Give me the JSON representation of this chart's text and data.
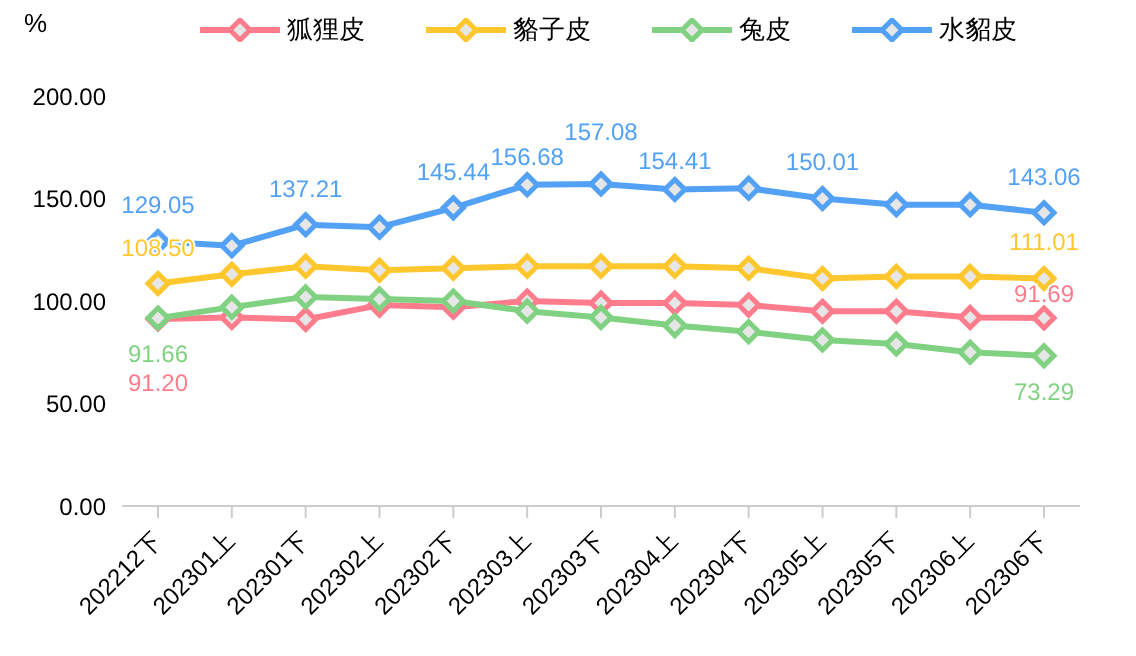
{
  "chart_data": {
    "type": "line",
    "ylabel": "%",
    "categories": [
      "202212下",
      "202301上",
      "202301下",
      "202302上",
      "202302下",
      "202303上",
      "202303下",
      "202304上",
      "202304下",
      "202305上",
      "202305下",
      "202306上",
      "202306下"
    ],
    "series": [
      {
        "name": "狐狸皮",
        "color": "#ff7c8c",
        "values": [
          91.2,
          92,
          91,
          98,
          97,
          100,
          99,
          99,
          98,
          95,
          95,
          92,
          91.69
        ],
        "value_labels": [
          "91.20",
          null,
          null,
          null,
          null,
          null,
          null,
          null,
          null,
          null,
          null,
          null,
          "91.69"
        ]
      },
      {
        "name": "貉子皮",
        "color": "#ffc72e",
        "values": [
          108.5,
          113,
          117,
          115,
          116,
          117,
          117,
          117,
          116,
          111,
          112,
          112,
          111.01
        ],
        "value_labels": [
          "108.50",
          null,
          null,
          null,
          null,
          null,
          null,
          null,
          null,
          null,
          null,
          null,
          "111.01"
        ]
      },
      {
        "name": "兔皮",
        "color": "#80d282",
        "values": [
          91.66,
          97,
          102,
          101,
          100,
          95,
          92,
          88,
          85,
          81,
          79,
          75,
          73.29
        ],
        "value_labels": [
          "91.66",
          null,
          null,
          null,
          null,
          null,
          null,
          null,
          null,
          null,
          null,
          null,
          "73.29"
        ]
      },
      {
        "name": "水貂皮",
        "color": "#52a1f5",
        "values": [
          129.05,
          127,
          137.21,
          136,
          145.44,
          156.68,
          157.08,
          154.41,
          155,
          150.01,
          147,
          147,
          143.06
        ],
        "value_labels": [
          "129.05",
          null,
          "137.21",
          null,
          "145.44",
          "156.68",
          "157.08",
          "154.41",
          null,
          "150.01",
          null,
          null,
          "143.06"
        ]
      }
    ],
    "ylim": [
      0,
      200
    ],
    "yticks": [
      {
        "value": 0,
        "label": "0.00"
      },
      {
        "value": 50,
        "label": "50.00"
      },
      {
        "value": 100,
        "label": "100.00"
      },
      {
        "value": 150,
        "label": "150.00"
      },
      {
        "value": 200,
        "label": "200.00"
      }
    ],
    "grid": false,
    "legend": "top",
    "marker": "diamond",
    "line_style": "solid"
  }
}
